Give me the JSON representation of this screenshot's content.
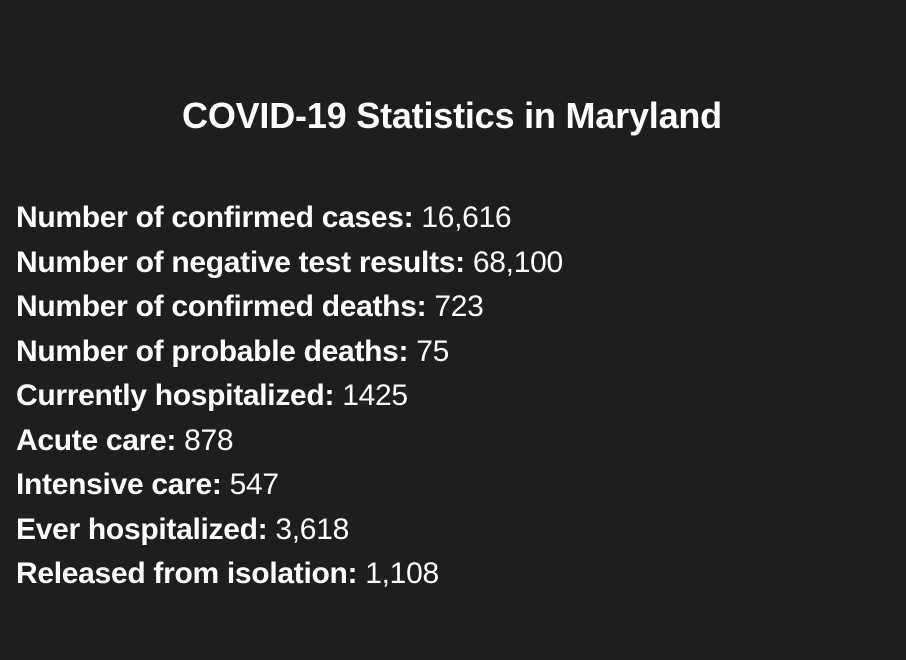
{
  "page": {
    "title": "COVID-19 Statistics in Maryland"
  },
  "stats": [
    {
      "label": "Number of confirmed cases:",
      "value": "16,616"
    },
    {
      "label": "Number of negative test results:",
      "value": "68,100"
    },
    {
      "label": "Number of confirmed deaths:",
      "value": "723"
    },
    {
      "label": "Number of probable deaths:",
      "value": "75"
    },
    {
      "label": "Currently hospitalized:",
      "value": "1425"
    },
    {
      "label": "Acute care:",
      "value": "878"
    },
    {
      "label": "Intensive care:",
      "value": "547"
    },
    {
      "label": "Ever hospitalized:",
      "value": "3,618"
    },
    {
      "label": "Released from isolation:",
      "value": "1,108"
    }
  ]
}
